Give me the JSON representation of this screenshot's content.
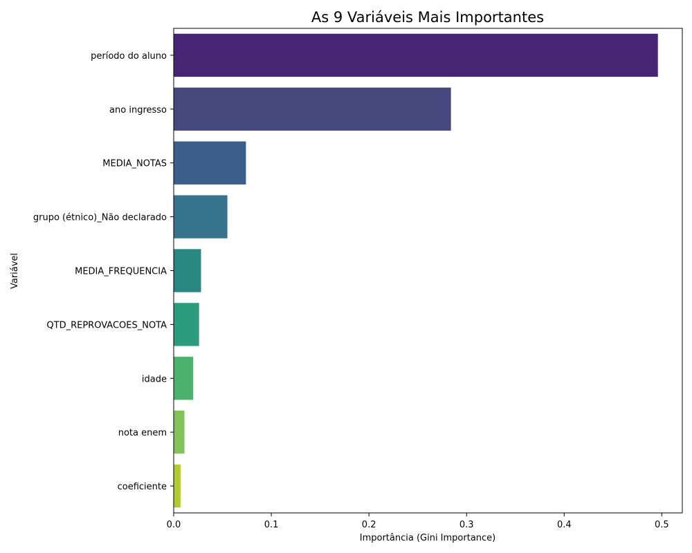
{
  "chart_data": {
    "type": "bar",
    "orientation": "horizontal",
    "title": "As 9 Variáveis Mais Importantes",
    "xlabel": "Importância (Gini Importance)",
    "ylabel": "Variável",
    "xlim": [
      0,
      0.521
    ],
    "xticks": [
      "0.0",
      "0.1",
      "0.2",
      "0.3",
      "0.4",
      "0.5"
    ],
    "grid": false,
    "categories": [
      "período do aluno",
      "ano ingresso",
      "MEDIA_NOTAS",
      "grupo (étnico)_Não declarado",
      "MEDIA_FREQUENCIA",
      "QTD_REPROVACOES_NOTA",
      "idade",
      "nota enem",
      "coeficiente"
    ],
    "values": [
      0.496,
      0.284,
      0.074,
      0.055,
      0.028,
      0.026,
      0.02,
      0.011,
      0.007
    ],
    "colors": [
      "#482474",
      "#46497e",
      "#3c5e8a",
      "#36738c",
      "#2a8882",
      "#2c9d7c",
      "#4cb26d",
      "#7fc35a",
      "#b0cc32"
    ]
  }
}
